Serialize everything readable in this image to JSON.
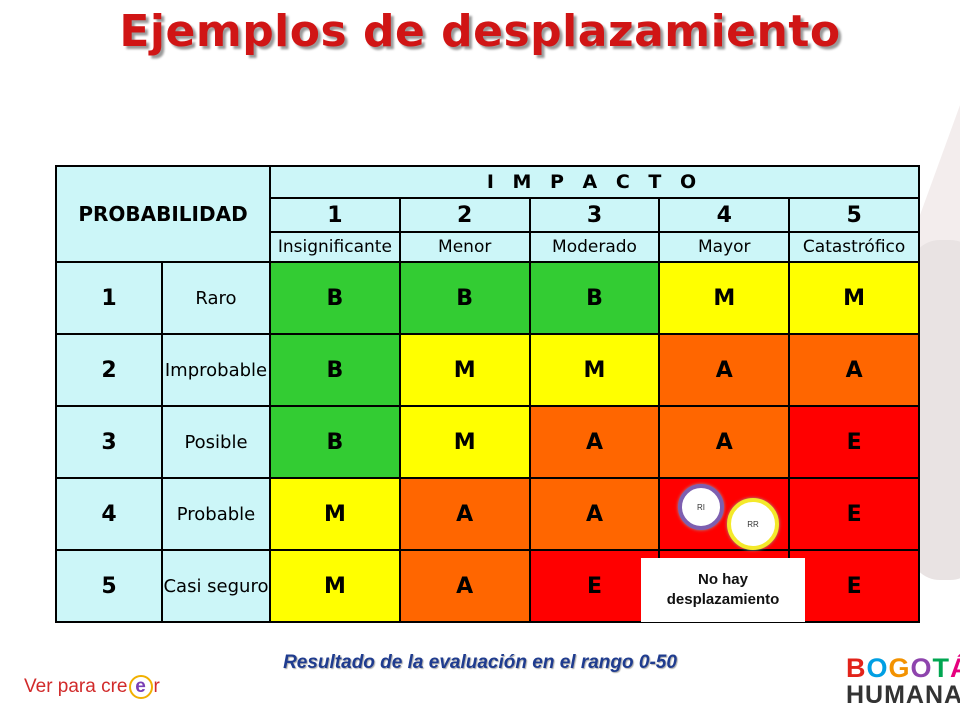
{
  "title": "Ejemplos de desplazamiento",
  "matrix": {
    "probability_header": "PROBABILIDAD",
    "impact_header": "I M P A C T O",
    "impact_levels": [
      {
        "num": "1",
        "label": "Insignificante"
      },
      {
        "num": "2",
        "label": "Menor"
      },
      {
        "num": "3",
        "label": "Moderado"
      },
      {
        "num": "4",
        "label": "Mayor"
      },
      {
        "num": "5",
        "label": "Catastrófico"
      }
    ],
    "rows": [
      {
        "num": "1",
        "label": "Raro",
        "cells": [
          "B",
          "B",
          "B",
          "M",
          "M"
        ],
        "colors": [
          "g",
          "g",
          "g",
          "y",
          "y"
        ]
      },
      {
        "num": "2",
        "label": "Improbable",
        "cells": [
          "B",
          "M",
          "M",
          "A",
          "A"
        ],
        "colors": [
          "g",
          "y",
          "y",
          "o",
          "o"
        ]
      },
      {
        "num": "3",
        "label": "Posible",
        "cells": [
          "B",
          "M",
          "A",
          "A",
          "E"
        ],
        "colors": [
          "g",
          "y",
          "o",
          "o",
          "r"
        ]
      },
      {
        "num": "4",
        "label": "Probable",
        "cells": [
          "M",
          "A",
          "A",
          "",
          "E"
        ],
        "colors": [
          "y",
          "o",
          "o",
          "r",
          "r"
        ]
      },
      {
        "num": "5",
        "label": "Casi seguro",
        "cells": [
          "M",
          "A",
          "E",
          "",
          "E"
        ],
        "colors": [
          "y",
          "o",
          "r",
          "r",
          "r"
        ]
      }
    ],
    "colors": {
      "g": "#33cc33",
      "y": "#ffff00",
      "o": "#ff6600",
      "r": "#ff0000",
      "header": "#ccf6f8"
    }
  },
  "markers": {
    "ri": "RI",
    "rr": "RR"
  },
  "note": {
    "line1": "No hay",
    "line2": "desplazamiento"
  },
  "result_caption": "Resultado de la evaluación en el rango 0-50",
  "brand_left": {
    "pre": "Ver para cre",
    "e": "e",
    "post": "r"
  },
  "brand_right": {
    "l1": [
      "B",
      "O",
      "G",
      "O",
      "T",
      "Á"
    ],
    "l2": "HUMANA"
  }
}
